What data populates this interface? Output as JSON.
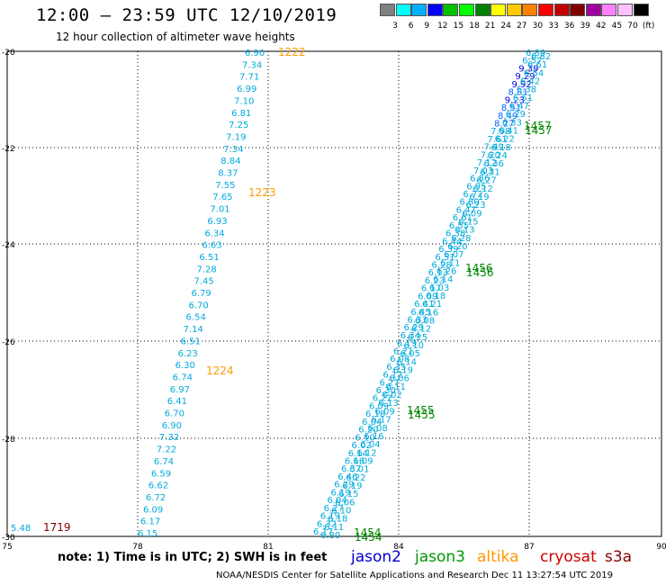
{
  "header": {
    "title": "12:00 — 23:59 UTC 12/10/2019",
    "subtitle": "12 hour collection of altimeter wave heights"
  },
  "colorbar": {
    "labels": [
      "3",
      "6",
      "9",
      "12",
      "15",
      "18",
      "21",
      "24",
      "27",
      "30",
      "33",
      "36",
      "39",
      "42",
      "45",
      "70",
      "(ft)"
    ],
    "colors": [
      "#808080",
      "#00ffff",
      "#00b0ff",
      "#0000ff",
      "#00c000",
      "#00ff00",
      "#008000",
      "#ffff00",
      "#ffc800",
      "#ff8000",
      "#ff0000",
      "#c00000",
      "#800000",
      "#a000a0",
      "#ff80ff",
      "#ffc0ff",
      "#000000"
    ]
  },
  "axes": {
    "lon_ticks": [
      "75",
      "78",
      "81",
      "84",
      "87",
      "90"
    ],
    "lat_ticks": [
      "-20",
      "-22",
      "-24",
      "-26",
      "-28",
      "-30"
    ]
  },
  "passes": {
    "altika_left": {
      "values": [
        "6.90",
        "7.34",
        "7.71",
        "6.99",
        "7.10",
        "6.81",
        "7.25",
        "7.19",
        "7.34",
        "8.84",
        "8.37",
        "7.55",
        "7.65",
        "7.01",
        "6.93",
        "6.34",
        "6.63",
        "6.51",
        "7.28",
        "7.45",
        "6.79",
        "6.70",
        "6.54",
        "7.14",
        "6.51",
        "6.23",
        "6.30",
        "6.74",
        "6.97",
        "6.41",
        "6.70",
        "6.90",
        "7.32",
        "7.22",
        "6.74",
        "6.59",
        "6.62",
        "6.72",
        "6.09",
        "6.17",
        "6.15"
      ]
    },
    "diagonal_a": {
      "values": [
        "6.89",
        "6.57",
        "9.39",
        "9.29",
        "9.92",
        "8.81",
        "9.23",
        "8.51",
        "8.49",
        "8.27",
        "7.98",
        "7.61",
        "7.49",
        "7.20",
        "7.12",
        "7.03",
        "6.86",
        "6.95",
        "6.72",
        "6.80",
        "6.47",
        "6.61",
        "6.55",
        "6.38",
        "6.44",
        "6.39",
        "6.51",
        "6.28",
        "6.13",
        "6.23",
        "6.17",
        "6.09",
        "6.41",
        "6.45",
        "6.33",
        "6.29",
        "6.34",
        "6.19",
        "6.21",
        "6.08",
        "6.35",
        "6.12",
        "6.27",
        "6.30",
        "6.22",
        "6.09",
        "6.18",
        "6.04",
        "6.20",
        "6.10",
        "6.02",
        "6.14",
        "6.16",
        "6.37",
        "6.46",
        "6.29",
        "6.19",
        "6.04",
        "6.27",
        "6.19",
        "6.32",
        "6.17"
      ]
    },
    "diagonal_b": {
      "values": [
        "6.82",
        "6.61",
        "6.54",
        "6.42",
        "6.38",
        "6.51",
        "6.47",
        "6.29",
        "6.33",
        "6.41",
        "6.22",
        "6.18",
        "6.24",
        "6.36",
        "6.31",
        "6.27",
        "6.12",
        "6.19",
        "6.23",
        "6.09",
        "6.15",
        "6.13",
        "6.28",
        "6.20",
        "6.07",
        "6.11",
        "6.26",
        "6.14",
        "6.03",
        "6.18",
        "6.21",
        "6.16",
        "6.08",
        "6.12",
        "6.25",
        "6.10",
        "6.05",
        "6.14",
        "6.19",
        "6.06",
        "6.11",
        "6.02",
        "6.13",
        "6.09",
        "6.17",
        "6.08",
        "6.16",
        "6.04",
        "6.12",
        "6.09",
        "6.01",
        "6.22",
        "6.19",
        "6.15",
        "6.06",
        "6.10",
        "6.18",
        "6.11",
        "6.80"
      ]
    },
    "time_labels": [
      {
        "text": "1222",
        "color": "#ff9900"
      },
      {
        "text": "1223",
        "color": "#ff9900"
      },
      {
        "text": "1224",
        "color": "#ff9900"
      },
      {
        "text": "1719",
        "color": "#800000"
      },
      {
        "text": "1457",
        "color": "#008800"
      },
      {
        "text": "1456",
        "color": "#008800"
      },
      {
        "text": "1455",
        "color": "#008800"
      },
      {
        "text": "1454",
        "color": "#008800"
      }
    ],
    "corner_value": "5.48"
  },
  "footer": {
    "note": "note: 1) Time is in UTC; 2) SWH is in feet",
    "legend": [
      {
        "label": "jason2",
        "color": "#0000cc"
      },
      {
        "label": "jason3",
        "color": "#009900"
      },
      {
        "label": "altika",
        "color": "#ff9900"
      },
      {
        "label": "cryosat",
        "color": "#cc0000"
      },
      {
        "label": "s3a",
        "color": "#880000"
      }
    ],
    "credit": "NOAA/NESDIS Center for Satellite Applications and Research   Dec 11 13:27:54 UTC 2019"
  }
}
